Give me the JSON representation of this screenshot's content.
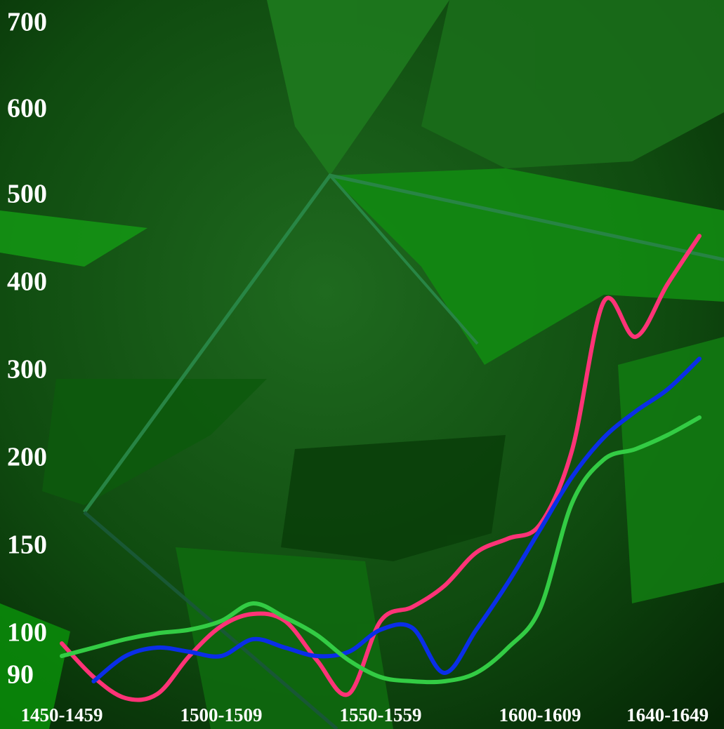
{
  "chart_data": {
    "type": "line",
    "categories": [
      "1450-1459",
      null,
      null,
      null,
      null,
      "1500-1509",
      null,
      null,
      null,
      null,
      "1550-1559",
      null,
      null,
      null,
      null,
      "1600-1609",
      null,
      null,
      null,
      "1640-1649",
      null
    ],
    "yticks": [
      90,
      100,
      150,
      200,
      300,
      400,
      500,
      600,
      700
    ],
    "series": [
      {
        "color": "#ff3377",
        "values": [
          98,
          90,
          85,
          86,
          95,
          105,
          112,
          108,
          94,
          86,
          108,
          116,
          128,
          147,
          155,
          163,
          210,
          380,
          340,
          400,
          455
        ]
      },
      {
        "color": "#0a2ee8",
        "values": [
          null,
          89,
          95,
          97,
          96,
          95,
          99,
          97,
          95,
          96,
          103,
          104,
          91,
          103,
          130,
          160,
          190,
          225,
          255,
          280,
          315
        ]
      },
      {
        "color": "#33cc44",
        "values": [
          95,
          97,
          99,
          101,
          103,
          108,
          118,
          110,
          100,
          94,
          90,
          89,
          89,
          91,
          97,
          115,
          175,
          200,
          212,
          228,
          248
        ]
      }
    ]
  }
}
